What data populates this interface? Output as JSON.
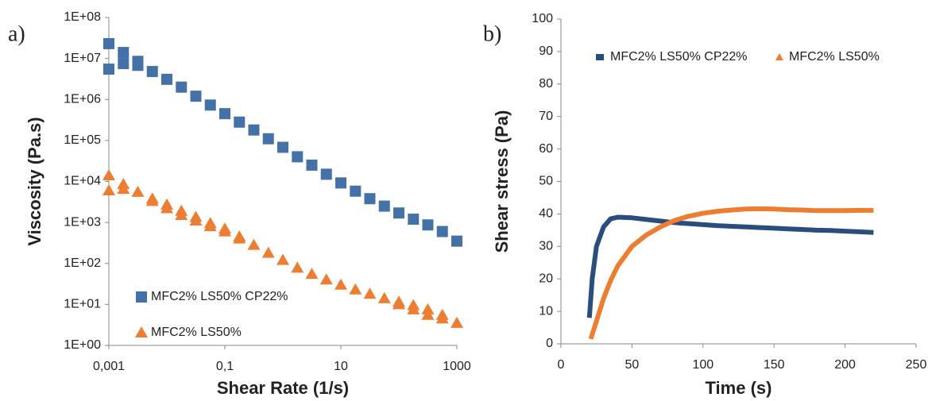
{
  "chart_data": [
    {
      "type": "scatter",
      "panel_label": "a)",
      "x_label": "Shear Rate (1/s)",
      "y_label": "Viscosity (Pa.s)",
      "xscale": "log",
      "yscale": "log",
      "xlim": [
        0.001,
        1000
      ],
      "ylim": [
        1,
        100000000
      ],
      "xticks": [
        {
          "value": 0.001,
          "label": "0,001"
        },
        {
          "value": 0.1,
          "label": "0,1"
        },
        10,
        1000
      ],
      "yticks": [
        {
          "value": 1,
          "label": "1E+00"
        },
        {
          "value": 10,
          "label": "1E+01"
        },
        {
          "value": 100,
          "label": "1E+02"
        },
        {
          "value": 1000,
          "label": "1E+03"
        },
        {
          "value": 10000,
          "label": "1E+04"
        },
        {
          "value": 100000,
          "label": "1E+05"
        },
        {
          "value": 1000000,
          "label": "1E+06"
        },
        {
          "value": 10000000,
          "label": "1E+07"
        },
        {
          "value": 100000000,
          "label": "1E+08"
        }
      ],
      "legend": "lower left",
      "series": [
        {
          "name": "MFC2% LS50% CP22%",
          "color": "#4472a8",
          "marker": "square",
          "x": [
            0.001,
            0.001,
            0.00178,
            0.00178,
            0.00316,
            0.00316,
            0.00562,
            0.01,
            0.0178,
            0.0316,
            0.0562,
            0.1,
            0.178,
            0.316,
            0.562,
            1,
            1.78,
            3.16,
            5.62,
            10,
            17.8,
            31.6,
            56.2,
            100,
            178,
            316,
            562,
            1000
          ],
          "values": [
            23000000,
            5500000,
            14000000,
            7500000,
            8500000,
            6800000,
            4800000,
            3100000,
            2000000,
            1200000,
            730000,
            450000,
            280000,
            180000,
            110000,
            68000,
            40000,
            25000,
            15000,
            9200,
            5800,
            3800,
            2500,
            1700,
            1200,
            870,
            600,
            350
          ]
        },
        {
          "name": "MFC2% LS50%",
          "color": "#ed7d31",
          "marker": "triangle",
          "x": [
            0.001,
            0.001,
            0.00178,
            0.00178,
            0.00316,
            0.00562,
            0.00562,
            0.01,
            0.01,
            0.0178,
            0.0178,
            0.0316,
            0.0316,
            0.0562,
            0.0562,
            0.1,
            0.1,
            0.178,
            0.178,
            0.316,
            0.562,
            1,
            1.78,
            3.16,
            5.62,
            10,
            17.8,
            31.6,
            56.2,
            100,
            100,
            178,
            178,
            316,
            316,
            562,
            562,
            1000
          ],
          "values": [
            14000,
            6000,
            8500,
            6500,
            5500,
            3800,
            3300,
            2700,
            2200,
            1900,
            1500,
            1350,
            1100,
            950,
            800,
            700,
            600,
            450,
            400,
            280,
            180,
            120,
            78,
            55,
            40,
            30,
            23,
            18,
            14,
            11.5,
            10,
            9.5,
            7.5,
            7.5,
            5.5,
            5.5,
            4.5,
            3.5
          ]
        }
      ]
    },
    {
      "type": "line",
      "panel_label": "b)",
      "x_label": "Time (s)",
      "y_label": "Shear stress (Pa)",
      "xlim": [
        0,
        250
      ],
      "ylim": [
        0,
        100
      ],
      "xticks": [
        0,
        50,
        100,
        150,
        200,
        250
      ],
      "yticks": [
        0,
        10,
        20,
        30,
        40,
        50,
        60,
        70,
        80,
        90,
        100
      ],
      "legend": "upper left",
      "series": [
        {
          "name": "MFC2% LS50% CP22%",
          "color": "#2a4d7f",
          "x": [
            20,
            22,
            25,
            30,
            35,
            40,
            50,
            60,
            70,
            80,
            90,
            100,
            110,
            120,
            130,
            140,
            150,
            160,
            170,
            180,
            190,
            200,
            210,
            220
          ],
          "values": [
            8,
            20,
            30,
            36,
            38.5,
            39,
            38.8,
            38.3,
            37.8,
            37.3,
            37,
            36.7,
            36.4,
            36.2,
            36,
            35.8,
            35.6,
            35.4,
            35.2,
            35,
            34.9,
            34.7,
            34.5,
            34.3
          ]
        },
        {
          "name": "MFC2% LS50%",
          "color": "#ed7d31",
          "x": [
            21,
            25,
            30,
            35,
            40,
            50,
            60,
            70,
            80,
            90,
            100,
            110,
            120,
            130,
            140,
            150,
            160,
            170,
            180,
            190,
            200,
            210,
            220
          ],
          "values": [
            1.5,
            7,
            14,
            19.5,
            24,
            30,
            33.5,
            36,
            38,
            39.3,
            40.2,
            40.8,
            41.2,
            41.5,
            41.6,
            41.5,
            41.3,
            41.2,
            41,
            41,
            41,
            41.1,
            41.1
          ]
        }
      ]
    }
  ]
}
